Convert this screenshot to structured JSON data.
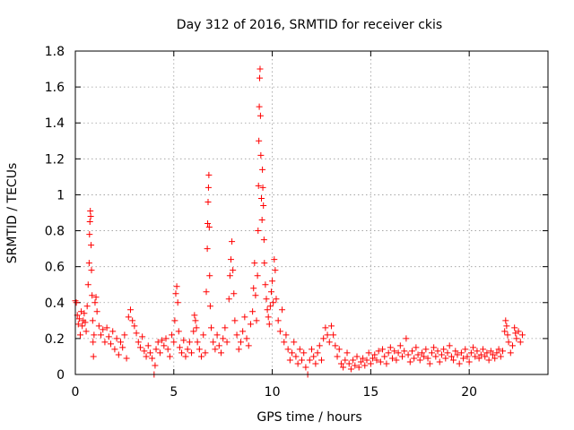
{
  "chart_data": {
    "type": "scatter",
    "title": "Day 312 of 2016, SRMTID for receiver ckis",
    "xlabel": "GPS time / hours",
    "ylabel": "SRMTID / TECUs",
    "xlim": [
      0,
      24
    ],
    "ylim": [
      0,
      1.8
    ],
    "x_ticks": [
      0,
      5,
      10,
      15,
      20
    ],
    "x_tick_labels": [
      "0",
      "5",
      "10",
      "15",
      "20"
    ],
    "y_ticks": [
      0,
      0.2,
      0.4,
      0.6,
      0.8,
      1.0,
      1.2,
      1.4,
      1.6,
      1.8
    ],
    "y_tick_labels": [
      "0",
      "0.2",
      "0.4",
      "0.6",
      "0.8",
      "1",
      "1.2",
      "1.4",
      "1.6",
      "1.8"
    ],
    "grid": true,
    "marker": "plus",
    "series": [
      {
        "name": "SRMTID",
        "color": "#ff0000",
        "points": [
          [
            0.0,
            0.41
          ],
          [
            0.05,
            0.4
          ],
          [
            0.1,
            0.33
          ],
          [
            0.15,
            0.28
          ],
          [
            0.2,
            0.31
          ],
          [
            0.25,
            0.22
          ],
          [
            0.3,
            0.35
          ],
          [
            0.35,
            0.27
          ],
          [
            0.4,
            0.3
          ],
          [
            0.45,
            0.34
          ],
          [
            0.5,
            0.29
          ],
          [
            0.55,
            0.24
          ],
          [
            0.6,
            0.38
          ],
          [
            0.65,
            0.5
          ],
          [
            0.7,
            0.62
          ],
          [
            0.72,
            0.78
          ],
          [
            0.74,
            0.85
          ],
          [
            0.76,
            0.91
          ],
          [
            0.78,
            0.88
          ],
          [
            0.8,
            0.72
          ],
          [
            0.82,
            0.58
          ],
          [
            0.85,
            0.44
          ],
          [
            0.88,
            0.3
          ],
          [
            0.9,
            0.18
          ],
          [
            0.92,
            0.1
          ],
          [
            0.95,
            0.22
          ],
          [
            1.0,
            0.4
          ],
          [
            1.05,
            0.43
          ],
          [
            1.1,
            0.35
          ],
          [
            1.2,
            0.27
          ],
          [
            1.3,
            0.22
          ],
          [
            1.4,
            0.25
          ],
          [
            1.5,
            0.18
          ],
          [
            1.6,
            0.26
          ],
          [
            1.7,
            0.21
          ],
          [
            1.8,
            0.17
          ],
          [
            1.9,
            0.24
          ],
          [
            2.0,
            0.14
          ],
          [
            2.1,
            0.2
          ],
          [
            2.2,
            0.11
          ],
          [
            2.3,
            0.18
          ],
          [
            2.4,
            0.15
          ],
          [
            2.5,
            0.22
          ],
          [
            2.6,
            0.09
          ],
          [
            2.7,
            0.32
          ],
          [
            2.8,
            0.36
          ],
          [
            2.9,
            0.3
          ],
          [
            3.0,
            0.27
          ],
          [
            3.1,
            0.23
          ],
          [
            3.2,
            0.18
          ],
          [
            3.3,
            0.15
          ],
          [
            3.4,
            0.21
          ],
          [
            3.5,
            0.13
          ],
          [
            3.6,
            0.1
          ],
          [
            3.7,
            0.16
          ],
          [
            3.8,
            0.12
          ],
          [
            3.9,
            0.09
          ],
          [
            4.0,
            0.0
          ],
          [
            4.05,
            0.05
          ],
          [
            4.1,
            0.14
          ],
          [
            4.2,
            0.18
          ],
          [
            4.3,
            0.12
          ],
          [
            4.4,
            0.19
          ],
          [
            4.5,
            0.16
          ],
          [
            4.6,
            0.2
          ],
          [
            4.7,
            0.14
          ],
          [
            4.8,
            0.1
          ],
          [
            4.9,
            0.22
          ],
          [
            5.0,
            0.18
          ],
          [
            5.05,
            0.3
          ],
          [
            5.1,
            0.45
          ],
          [
            5.15,
            0.49
          ],
          [
            5.2,
            0.4
          ],
          [
            5.25,
            0.24
          ],
          [
            5.3,
            0.15
          ],
          [
            5.4,
            0.12
          ],
          [
            5.5,
            0.19
          ],
          [
            5.6,
            0.1
          ],
          [
            5.7,
            0.14
          ],
          [
            5.8,
            0.18
          ],
          [
            5.9,
            0.12
          ],
          [
            6.0,
            0.24
          ],
          [
            6.05,
            0.33
          ],
          [
            6.1,
            0.3
          ],
          [
            6.15,
            0.26
          ],
          [
            6.2,
            0.18
          ],
          [
            6.3,
            0.14
          ],
          [
            6.4,
            0.1
          ],
          [
            6.5,
            0.22
          ],
          [
            6.6,
            0.12
          ],
          [
            6.65,
            0.46
          ],
          [
            6.7,
            0.7
          ],
          [
            6.72,
            0.84
          ],
          [
            6.74,
            0.96
          ],
          [
            6.76,
            1.04
          ],
          [
            6.78,
            1.11
          ],
          [
            6.8,
            0.82
          ],
          [
            6.82,
            0.55
          ],
          [
            6.85,
            0.38
          ],
          [
            6.9,
            0.26
          ],
          [
            7.0,
            0.18
          ],
          [
            7.1,
            0.14
          ],
          [
            7.2,
            0.22
          ],
          [
            7.3,
            0.16
          ],
          [
            7.4,
            0.12
          ],
          [
            7.5,
            0.2
          ],
          [
            7.6,
            0.26
          ],
          [
            7.7,
            0.18
          ],
          [
            7.8,
            0.42
          ],
          [
            7.85,
            0.55
          ],
          [
            7.9,
            0.64
          ],
          [
            7.95,
            0.74
          ],
          [
            8.0,
            0.58
          ],
          [
            8.05,
            0.45
          ],
          [
            8.1,
            0.3
          ],
          [
            8.2,
            0.22
          ],
          [
            8.3,
            0.14
          ],
          [
            8.4,
            0.18
          ],
          [
            8.5,
            0.24
          ],
          [
            8.6,
            0.32
          ],
          [
            8.7,
            0.2
          ],
          [
            8.8,
            0.16
          ],
          [
            8.9,
            0.28
          ],
          [
            9.0,
            0.35
          ],
          [
            9.05,
            0.48
          ],
          [
            9.1,
            0.62
          ],
          [
            9.15,
            0.44
          ],
          [
            9.2,
            0.3
          ],
          [
            9.25,
            0.55
          ],
          [
            9.28,
            0.8
          ],
          [
            9.3,
            1.05
          ],
          [
            9.32,
            1.3
          ],
          [
            9.34,
            1.49
          ],
          [
            9.36,
            1.65
          ],
          [
            9.38,
            1.7
          ],
          [
            9.4,
            1.44
          ],
          [
            9.42,
            1.22
          ],
          [
            9.45,
            0.98
          ],
          [
            9.48,
            0.86
          ],
          [
            9.5,
            1.14
          ],
          [
            9.52,
            1.04
          ],
          [
            9.55,
            0.94
          ],
          [
            9.58,
            0.75
          ],
          [
            9.6,
            0.62
          ],
          [
            9.65,
            0.5
          ],
          [
            9.7,
            0.42
          ],
          [
            9.75,
            0.36
          ],
          [
            9.8,
            0.32
          ],
          [
            9.85,
            0.28
          ],
          [
            9.9,
            0.38
          ],
          [
            9.95,
            0.46
          ],
          [
            10.0,
            0.52
          ],
          [
            10.05,
            0.4
          ],
          [
            10.1,
            0.64
          ],
          [
            10.15,
            0.58
          ],
          [
            10.2,
            0.42
          ],
          [
            10.3,
            0.3
          ],
          [
            10.4,
            0.24
          ],
          [
            10.5,
            0.36
          ],
          [
            10.6,
            0.18
          ],
          [
            10.7,
            0.22
          ],
          [
            10.8,
            0.14
          ],
          [
            10.9,
            0.08
          ],
          [
            11.0,
            0.12
          ],
          [
            11.1,
            0.18
          ],
          [
            11.2,
            0.1
          ],
          [
            11.3,
            0.06
          ],
          [
            11.4,
            0.14
          ],
          [
            11.5,
            0.08
          ],
          [
            11.6,
            0.12
          ],
          [
            11.7,
            0.04
          ],
          [
            11.8,
            0.0
          ],
          [
            11.9,
            0.08
          ],
          [
            12.0,
            0.14
          ],
          [
            12.1,
            0.1
          ],
          [
            12.2,
            0.06
          ],
          [
            12.3,
            0.12
          ],
          [
            12.4,
            0.16
          ],
          [
            12.5,
            0.08
          ],
          [
            12.6,
            0.2
          ],
          [
            12.7,
            0.26
          ],
          [
            12.8,
            0.22
          ],
          [
            12.9,
            0.18
          ],
          [
            13.0,
            0.27
          ],
          [
            13.1,
            0.22
          ],
          [
            13.2,
            0.16
          ],
          [
            13.3,
            0.1
          ],
          [
            13.4,
            0.14
          ],
          [
            13.5,
            0.06
          ],
          [
            13.6,
            0.04
          ],
          [
            13.7,
            0.08
          ],
          [
            13.8,
            0.12
          ],
          [
            13.9,
            0.06
          ],
          [
            14.0,
            0.03
          ],
          [
            14.1,
            0.08
          ],
          [
            14.2,
            0.05
          ],
          [
            14.3,
            0.1
          ],
          [
            14.4,
            0.04
          ],
          [
            14.5,
            0.07
          ],
          [
            14.6,
            0.09
          ],
          [
            14.7,
            0.05
          ],
          [
            14.8,
            0.08
          ],
          [
            14.9,
            0.12
          ],
          [
            15.0,
            0.06
          ],
          [
            15.1,
            0.09
          ],
          [
            15.2,
            0.11
          ],
          [
            15.3,
            0.08
          ],
          [
            15.4,
            0.13
          ],
          [
            15.5,
            0.07
          ],
          [
            15.6,
            0.14
          ],
          [
            15.7,
            0.1
          ],
          [
            15.8,
            0.06
          ],
          [
            15.9,
            0.12
          ],
          [
            16.0,
            0.15
          ],
          [
            16.1,
            0.09
          ],
          [
            16.2,
            0.13
          ],
          [
            16.3,
            0.08
          ],
          [
            16.4,
            0.12
          ],
          [
            16.5,
            0.16
          ],
          [
            16.6,
            0.1
          ],
          [
            16.7,
            0.13
          ],
          [
            16.8,
            0.2
          ],
          [
            16.9,
            0.11
          ],
          [
            17.0,
            0.07
          ],
          [
            17.1,
            0.13
          ],
          [
            17.2,
            0.09
          ],
          [
            17.3,
            0.15
          ],
          [
            17.4,
            0.11
          ],
          [
            17.5,
            0.08
          ],
          [
            17.6,
            0.12
          ],
          [
            17.7,
            0.1
          ],
          [
            17.8,
            0.14
          ],
          [
            17.9,
            0.09
          ],
          [
            18.0,
            0.06
          ],
          [
            18.1,
            0.12
          ],
          [
            18.2,
            0.15
          ],
          [
            18.3,
            0.1
          ],
          [
            18.4,
            0.13
          ],
          [
            18.5,
            0.07
          ],
          [
            18.6,
            0.11
          ],
          [
            18.7,
            0.14
          ],
          [
            18.8,
            0.09
          ],
          [
            18.9,
            0.12
          ],
          [
            19.0,
            0.16
          ],
          [
            19.1,
            0.1
          ],
          [
            19.2,
            0.08
          ],
          [
            19.3,
            0.13
          ],
          [
            19.4,
            0.11
          ],
          [
            19.5,
            0.06
          ],
          [
            19.6,
            0.12
          ],
          [
            19.7,
            0.09
          ],
          [
            19.8,
            0.14
          ],
          [
            19.9,
            0.1
          ],
          [
            20.0,
            0.07
          ],
          [
            20.1,
            0.12
          ],
          [
            20.2,
            0.15
          ],
          [
            20.3,
            0.1
          ],
          [
            20.4,
            0.13
          ],
          [
            20.5,
            0.09
          ],
          [
            20.6,
            0.11
          ],
          [
            20.7,
            0.14
          ],
          [
            20.8,
            0.1
          ],
          [
            20.9,
            0.12
          ],
          [
            21.0,
            0.08
          ],
          [
            21.1,
            0.13
          ],
          [
            21.2,
            0.11
          ],
          [
            21.3,
            0.09
          ],
          [
            21.4,
            0.12
          ],
          [
            21.5,
            0.14
          ],
          [
            21.6,
            0.1
          ],
          [
            21.7,
            0.13
          ],
          [
            21.8,
            0.24
          ],
          [
            21.85,
            0.3
          ],
          [
            21.9,
            0.27
          ],
          [
            21.95,
            0.22
          ],
          [
            22.0,
            0.18
          ],
          [
            22.1,
            0.12
          ],
          [
            22.2,
            0.16
          ],
          [
            22.3,
            0.26
          ],
          [
            22.35,
            0.23
          ],
          [
            22.4,
            0.2
          ],
          [
            22.5,
            0.24
          ],
          [
            22.6,
            0.18
          ],
          [
            22.7,
            0.22
          ]
        ]
      }
    ]
  }
}
